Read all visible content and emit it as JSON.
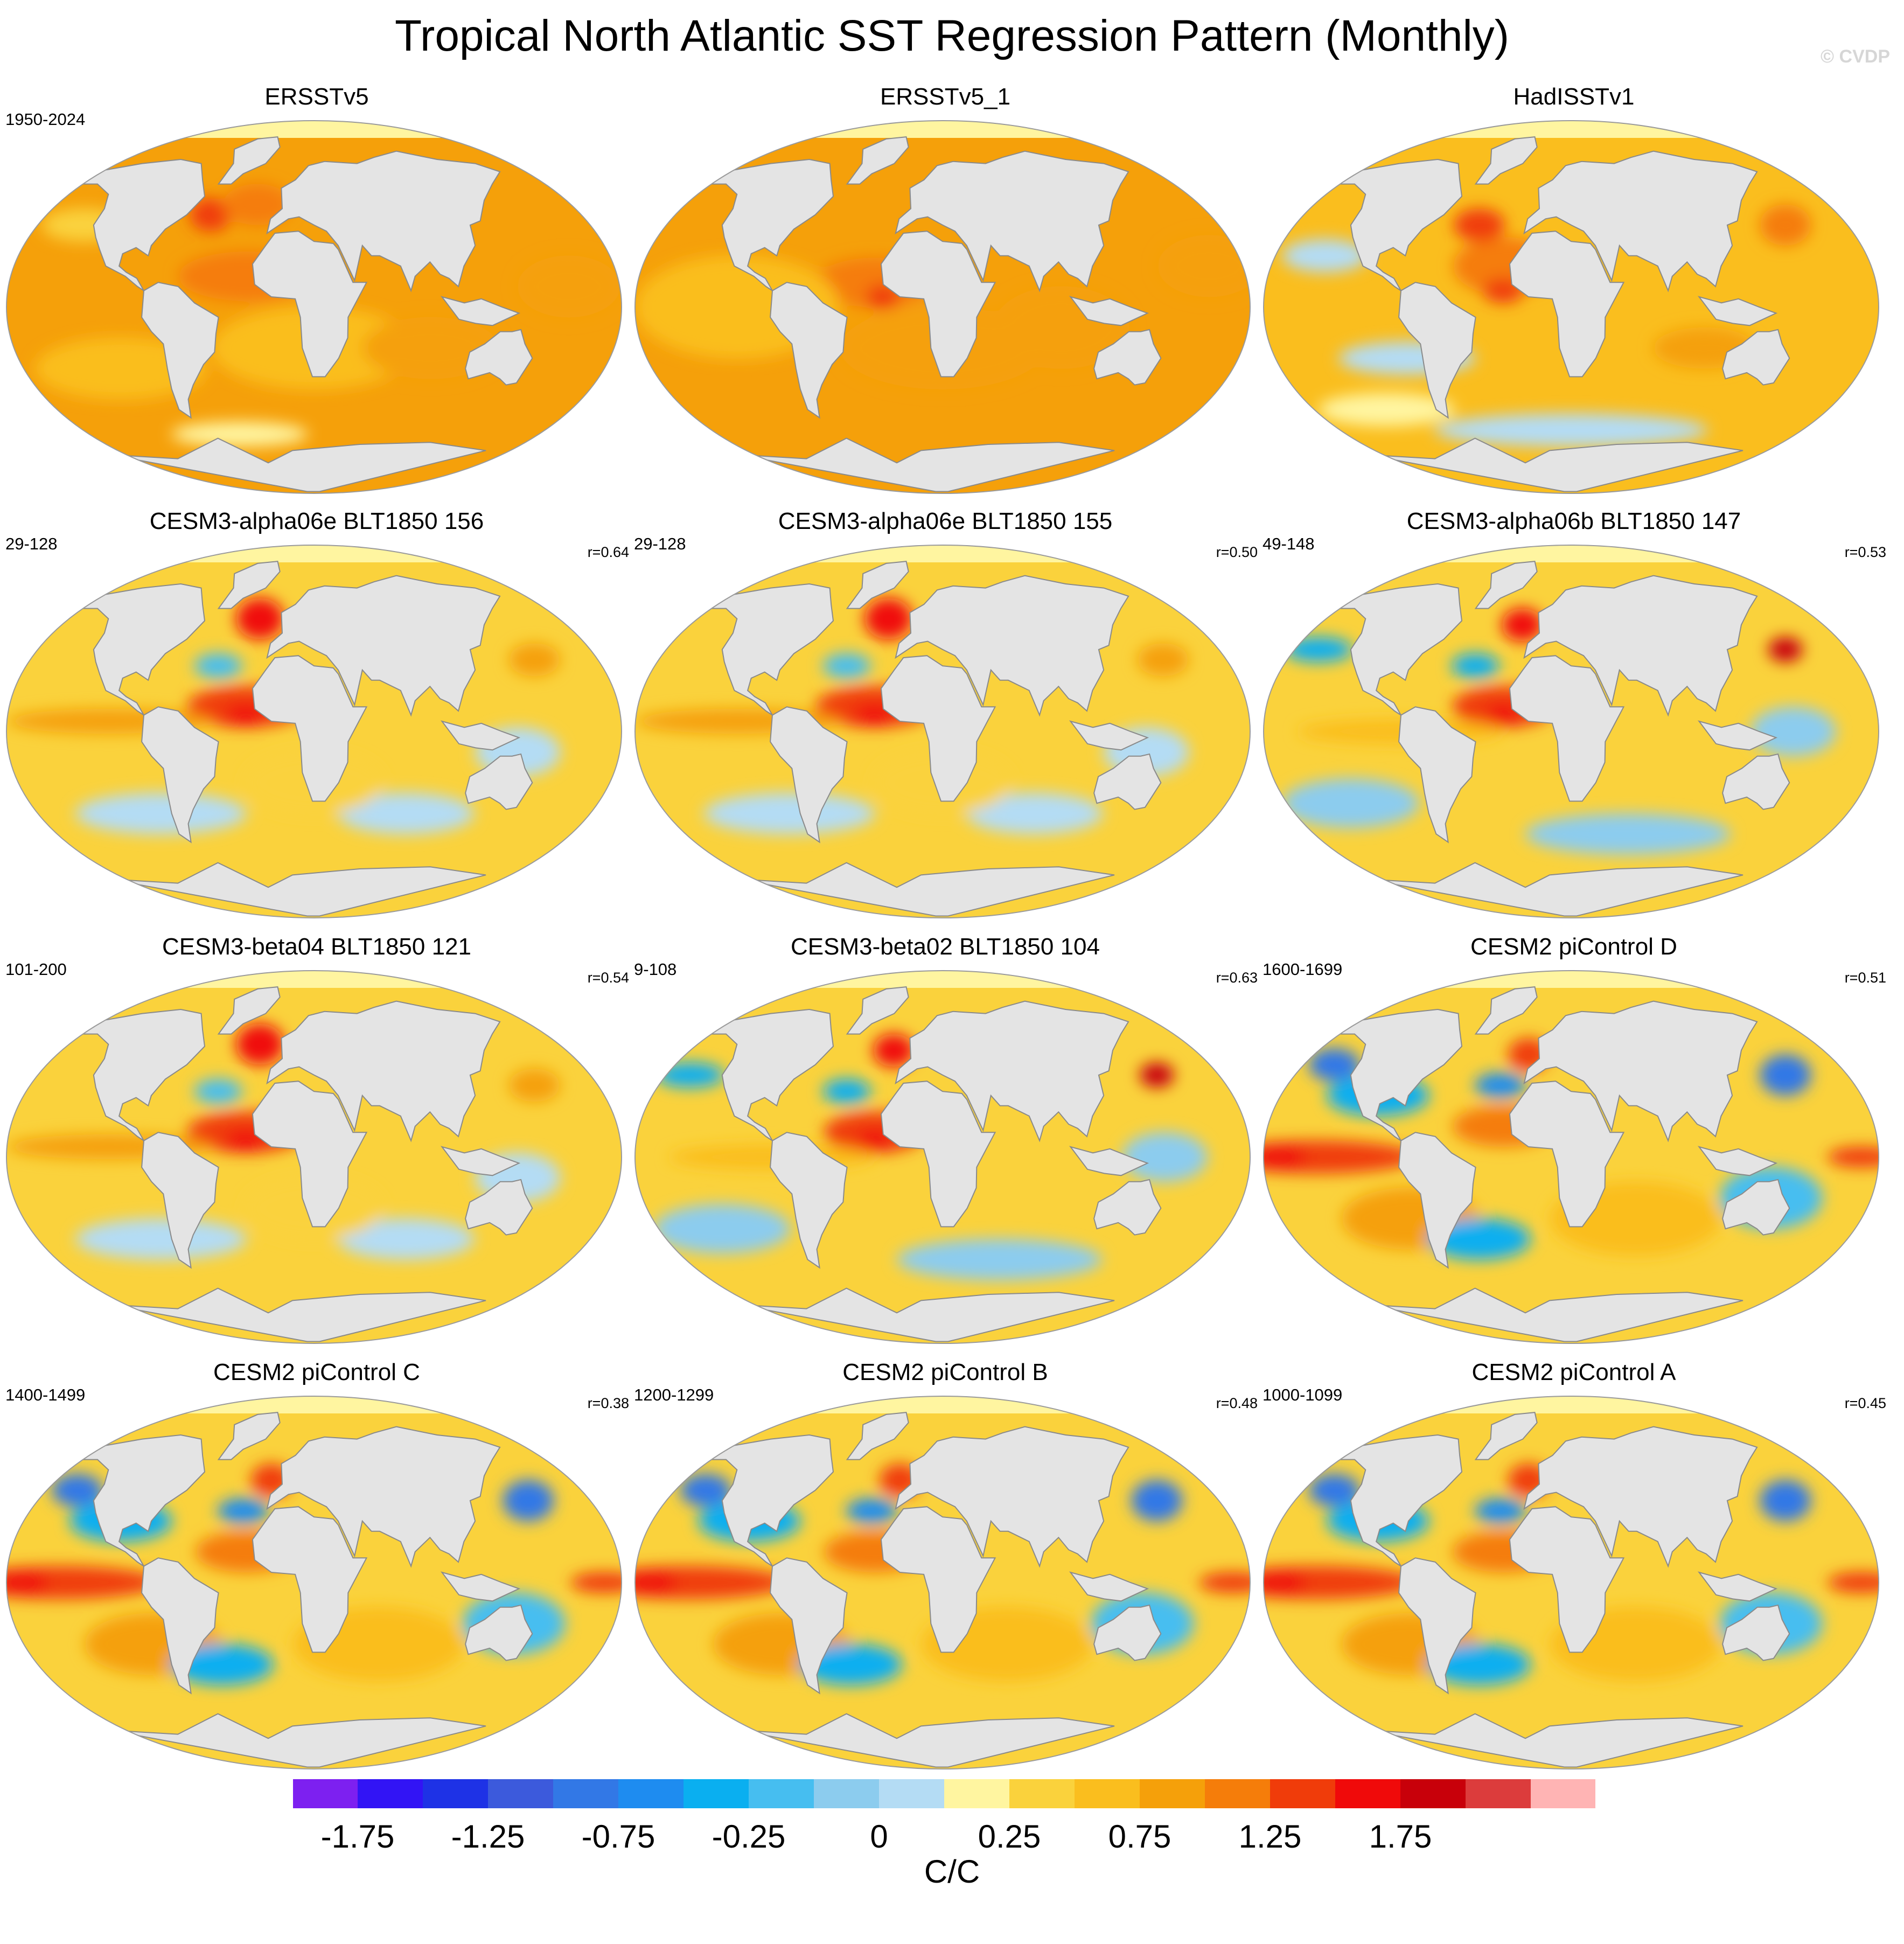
{
  "main_title": "Tropical North Atlantic SST Regression Pattern (Monthly)",
  "watermark": "© CVDP",
  "colors": {
    "land": "#e4e4e4",
    "coast": "#8a8a8a",
    "ocean_base": "#fbd92f"
  },
  "chart_data": {
    "type": "heatmap",
    "title": "Tropical North Atlantic SST Regression Pattern (Monthly)",
    "units": "C/C",
    "colorbar": {
      "levels": [
        -2.0,
        -1.75,
        -1.5,
        -1.25,
        -1.0,
        -0.75,
        -0.5,
        -0.25,
        -0.1,
        0,
        0.1,
        0.25,
        0.5,
        0.75,
        1.0,
        1.25,
        1.5,
        1.75,
        2.0
      ],
      "colors": [
        "#7d20f0",
        "#3214f5",
        "#1e32e6",
        "#3c5adc",
        "#3278e6",
        "#1e8cf0",
        "#0aaff0",
        "#46bef0",
        "#8cccee",
        "#b4dcf4",
        "#fff5a0",
        "#fad23c",
        "#fabe1e",
        "#f5a00a",
        "#f57d0a",
        "#f03c0a",
        "#f00a0a",
        "#c8000a",
        "#dc3c3c",
        "#ffb4b4"
      ],
      "tick_labels": [
        "-1.75",
        "-1.25",
        "-0.75",
        "-0.25",
        "0",
        "0.25",
        "0.75",
        "1.25",
        "1.75"
      ],
      "unit_label": "C/C"
    },
    "panels": [
      {
        "title": "ERSSTv5",
        "years": "1950-2024",
        "r": "",
        "style": "obs1"
      },
      {
        "title": "ERSSTv5_1",
        "years": "",
        "r": "",
        "style": "obs2"
      },
      {
        "title": "HadISSTv1",
        "years": "",
        "r": "",
        "style": "obs3"
      },
      {
        "title": "CESM3-alpha06e BLT1850 156",
        "years": "29-128",
        "r": "r=0.64",
        "style": "model"
      },
      {
        "title": "CESM3-alpha06e BLT1850 155",
        "years": "29-128",
        "r": "r=0.50",
        "style": "model"
      },
      {
        "title": "CESM3-alpha06b BLT1850 147",
        "years": "49-148",
        "r": "r=0.53",
        "style": "modelb"
      },
      {
        "title": "CESM3-beta04 BLT1850 121",
        "years": "101-200",
        "r": "r=0.54",
        "style": "model"
      },
      {
        "title": "CESM3-beta02 BLT1850 104",
        "years": "9-108",
        "r": "r=0.63",
        "style": "modelb"
      },
      {
        "title": "CESM2 piControl D",
        "years": "1600-1699",
        "r": "r=0.51",
        "style": "cesm2"
      },
      {
        "title": "CESM2 piControl C",
        "years": "1400-1499",
        "r": "r=0.38",
        "style": "cesm2"
      },
      {
        "title": "CESM2 piControl B",
        "years": "1200-1299",
        "r": "r=0.48",
        "style": "cesm2"
      },
      {
        "title": "CESM2 piControl A",
        "years": "1000-1099",
        "r": "r=0.45",
        "style": "cesm2"
      }
    ]
  }
}
